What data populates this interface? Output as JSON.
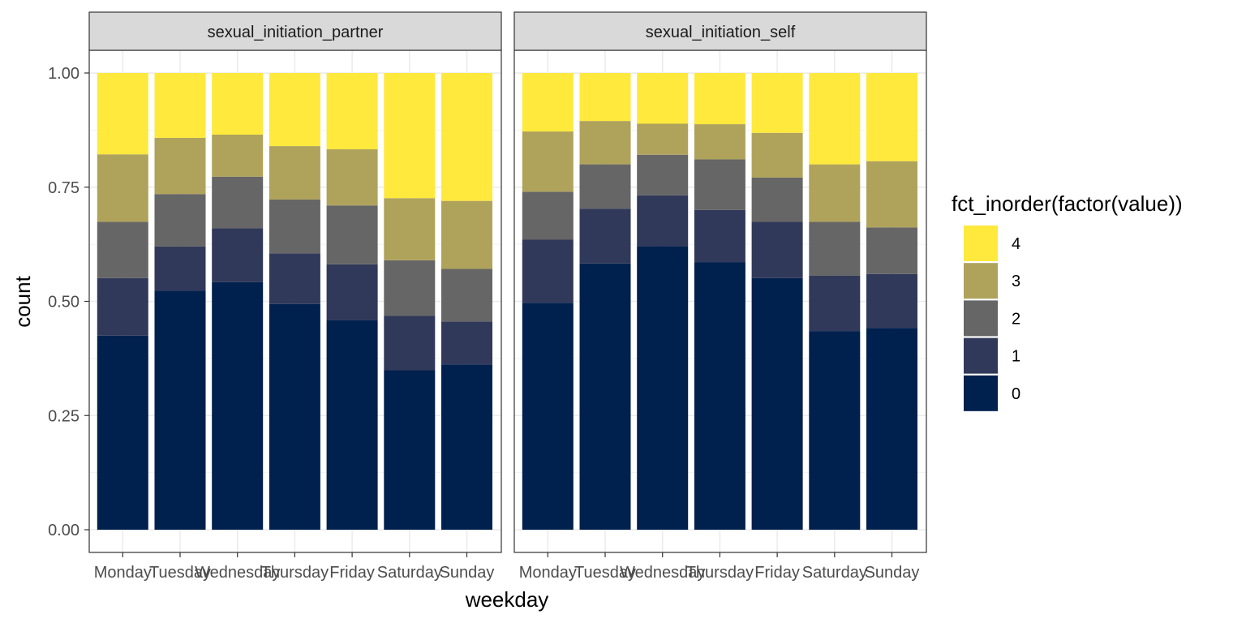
{
  "chart_data": {
    "type": "bar",
    "stacked": true,
    "xlabel": "weekday",
    "ylabel": "count",
    "ylim": [
      0,
      1
    ],
    "yticks": [
      "0.00",
      "0.25",
      "0.50",
      "0.75",
      "1.00"
    ],
    "categories": [
      "Monday",
      "Tuesday",
      "Wednesday",
      "Thursday",
      "Friday",
      "Saturday",
      "Sunday"
    ],
    "legend": {
      "title": "fct_inorder(factor(value))",
      "position": "right",
      "levels": [
        "4",
        "3",
        "2",
        "1",
        "0"
      ]
    },
    "colors": {
      "0": "#00204D",
      "1": "#31395A",
      "2": "#666666",
      "3": "#AFA35C",
      "4": "#FFE93D"
    },
    "panels": [
      {
        "strip": "sexual_initiation_partner",
        "series": [
          {
            "name": "0",
            "values": [
              0.425,
              0.523,
              0.542,
              0.494,
              0.459,
              0.349,
              0.362
            ]
          },
          {
            "name": "1",
            "values": [
              0.126,
              0.097,
              0.118,
              0.111,
              0.122,
              0.119,
              0.094
            ]
          },
          {
            "name": "2",
            "values": [
              0.123,
              0.115,
              0.113,
              0.118,
              0.129,
              0.122,
              0.115
            ]
          },
          {
            "name": "3",
            "values": [
              0.148,
              0.123,
              0.092,
              0.117,
              0.123,
              0.136,
              0.149
            ]
          },
          {
            "name": "4",
            "values": [
              0.178,
              0.142,
              0.135,
              0.16,
              0.167,
              0.274,
              0.28
            ]
          }
        ]
      },
      {
        "strip": "sexual_initiation_self",
        "series": [
          {
            "name": "0",
            "values": [
              0.497,
              0.583,
              0.621,
              0.586,
              0.551,
              0.435,
              0.442
            ]
          },
          {
            "name": "1",
            "values": [
              0.138,
              0.12,
              0.111,
              0.114,
              0.123,
              0.121,
              0.118
            ]
          },
          {
            "name": "2",
            "values": [
              0.105,
              0.097,
              0.089,
              0.111,
              0.097,
              0.118,
              0.102
            ]
          },
          {
            "name": "3",
            "values": [
              0.132,
              0.095,
              0.068,
              0.077,
              0.098,
              0.126,
              0.145
            ]
          },
          {
            "name": "4",
            "values": [
              0.128,
              0.105,
              0.111,
              0.112,
              0.131,
              0.2,
              0.193
            ]
          }
        ]
      }
    ]
  }
}
